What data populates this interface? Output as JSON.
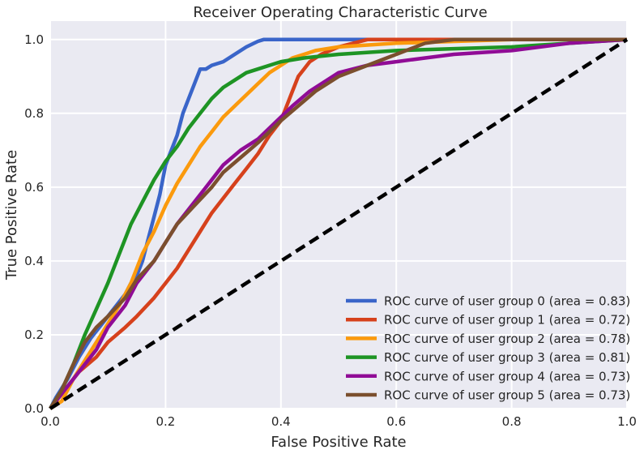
{
  "chart_data": {
    "type": "line",
    "title": "Receiver Operating Characteristic Curve",
    "xlabel": "False Positive Rate",
    "ylabel": "True Positive Rate",
    "xlim": [
      0.0,
      1.0
    ],
    "ylim": [
      0.0,
      1.05
    ],
    "xticks": [
      "0.0",
      "0.2",
      "0.4",
      "0.6",
      "0.8",
      "1.0"
    ],
    "yticks": [
      "0.0",
      "0.2",
      "0.4",
      "0.6",
      "0.8",
      "1.0"
    ],
    "grid": true,
    "legend_position": "lower-right",
    "diagonal": {
      "x": [
        0,
        1
      ],
      "y": [
        0,
        1
      ],
      "color": "#000000",
      "style": "dashed"
    },
    "series": [
      {
        "name": "ROC curve of user group 0 (area = 0.83)",
        "color": "#3a65c9",
        "x": [
          0,
          0.01,
          0.03,
          0.05,
          0.07,
          0.09,
          0.11,
          0.13,
          0.14,
          0.15,
          0.16,
          0.17,
          0.18,
          0.19,
          0.2,
          0.21,
          0.22,
          0.23,
          0.24,
          0.25,
          0.26,
          0.27,
          0.28,
          0.3,
          0.32,
          0.34,
          0.36,
          0.37,
          0.4,
          0.5,
          0.7,
          1.0
        ],
        "y": [
          0,
          0.03,
          0.08,
          0.14,
          0.19,
          0.23,
          0.27,
          0.31,
          0.34,
          0.36,
          0.4,
          0.46,
          0.52,
          0.58,
          0.66,
          0.7,
          0.74,
          0.8,
          0.84,
          0.88,
          0.92,
          0.92,
          0.93,
          0.94,
          0.96,
          0.98,
          0.995,
          1.0,
          1.0,
          1.0,
          1.0,
          1.0
        ]
      },
      {
        "name": "ROC curve of user group 1 (area = 0.72)",
        "color": "#d6411c",
        "x": [
          0,
          0.02,
          0.05,
          0.08,
          0.1,
          0.13,
          0.15,
          0.18,
          0.2,
          0.22,
          0.24,
          0.26,
          0.28,
          0.3,
          0.32,
          0.34,
          0.36,
          0.38,
          0.4,
          0.41,
          0.42,
          0.43,
          0.44,
          0.45,
          0.47,
          0.5,
          0.55,
          0.6,
          0.7,
          0.8,
          1.0
        ],
        "y": [
          0,
          0.04,
          0.1,
          0.14,
          0.18,
          0.22,
          0.25,
          0.3,
          0.34,
          0.38,
          0.43,
          0.48,
          0.53,
          0.57,
          0.61,
          0.65,
          0.69,
          0.74,
          0.78,
          0.82,
          0.86,
          0.9,
          0.92,
          0.94,
          0.96,
          0.98,
          1.0,
          1.0,
          1.0,
          1.0,
          1.0
        ]
      },
      {
        "name": "ROC curve of user group 2 (area = 0.78)",
        "color": "#fb9a0d",
        "x": [
          0,
          0.02,
          0.04,
          0.06,
          0.08,
          0.1,
          0.12,
          0.14,
          0.16,
          0.18,
          0.2,
          0.22,
          0.24,
          0.26,
          0.28,
          0.3,
          0.32,
          0.34,
          0.36,
          0.38,
          0.4,
          0.42,
          0.44,
          0.46,
          0.5,
          0.6,
          0.8,
          1.0
        ],
        "y": [
          0,
          0.02,
          0.08,
          0.13,
          0.18,
          0.23,
          0.28,
          0.34,
          0.42,
          0.48,
          0.55,
          0.61,
          0.66,
          0.71,
          0.75,
          0.79,
          0.82,
          0.85,
          0.88,
          0.91,
          0.93,
          0.95,
          0.96,
          0.97,
          0.98,
          0.99,
          1.0,
          1.0
        ]
      },
      {
        "name": "ROC curve of user group 3 (area = 0.81)",
        "color": "#1e9424",
        "x": [
          0,
          0.02,
          0.04,
          0.06,
          0.08,
          0.1,
          0.12,
          0.14,
          0.16,
          0.18,
          0.2,
          0.22,
          0.24,
          0.26,
          0.28,
          0.3,
          0.32,
          0.34,
          0.36,
          0.38,
          0.4,
          0.44,
          0.5,
          0.6,
          0.8,
          1.0
        ],
        "y": [
          0,
          0.05,
          0.12,
          0.2,
          0.27,
          0.34,
          0.42,
          0.5,
          0.56,
          0.62,
          0.67,
          0.71,
          0.76,
          0.8,
          0.84,
          0.87,
          0.89,
          0.91,
          0.92,
          0.93,
          0.94,
          0.95,
          0.96,
          0.97,
          0.98,
          1.0
        ]
      },
      {
        "name": "ROC curve of user group 4 (area = 0.73)",
        "color": "#900c96",
        "x": [
          0,
          0.02,
          0.05,
          0.08,
          0.1,
          0.13,
          0.15,
          0.18,
          0.2,
          0.22,
          0.25,
          0.28,
          0.3,
          0.33,
          0.36,
          0.38,
          0.4,
          0.42,
          0.45,
          0.48,
          0.5,
          0.55,
          0.6,
          0.65,
          0.7,
          0.8,
          0.9,
          1.0
        ],
        "y": [
          0,
          0.04,
          0.1,
          0.16,
          0.22,
          0.28,
          0.34,
          0.4,
          0.45,
          0.5,
          0.56,
          0.62,
          0.66,
          0.7,
          0.73,
          0.76,
          0.79,
          0.82,
          0.86,
          0.89,
          0.91,
          0.93,
          0.94,
          0.95,
          0.96,
          0.97,
          0.99,
          1.0
        ]
      },
      {
        "name": "ROC curve of user group 5 (area = 0.73)",
        "color": "#7b4f2e",
        "x": [
          0,
          0.02,
          0.04,
          0.06,
          0.08,
          0.1,
          0.13,
          0.15,
          0.18,
          0.2,
          0.22,
          0.25,
          0.28,
          0.3,
          0.33,
          0.36,
          0.38,
          0.4,
          0.43,
          0.46,
          0.5,
          0.55,
          0.6,
          0.65,
          0.7,
          0.8,
          1.0
        ],
        "y": [
          0,
          0.05,
          0.12,
          0.18,
          0.22,
          0.25,
          0.3,
          0.35,
          0.4,
          0.45,
          0.5,
          0.55,
          0.6,
          0.64,
          0.68,
          0.72,
          0.75,
          0.78,
          0.82,
          0.86,
          0.9,
          0.93,
          0.96,
          0.99,
          1.0,
          1.0,
          1.0
        ]
      }
    ]
  }
}
